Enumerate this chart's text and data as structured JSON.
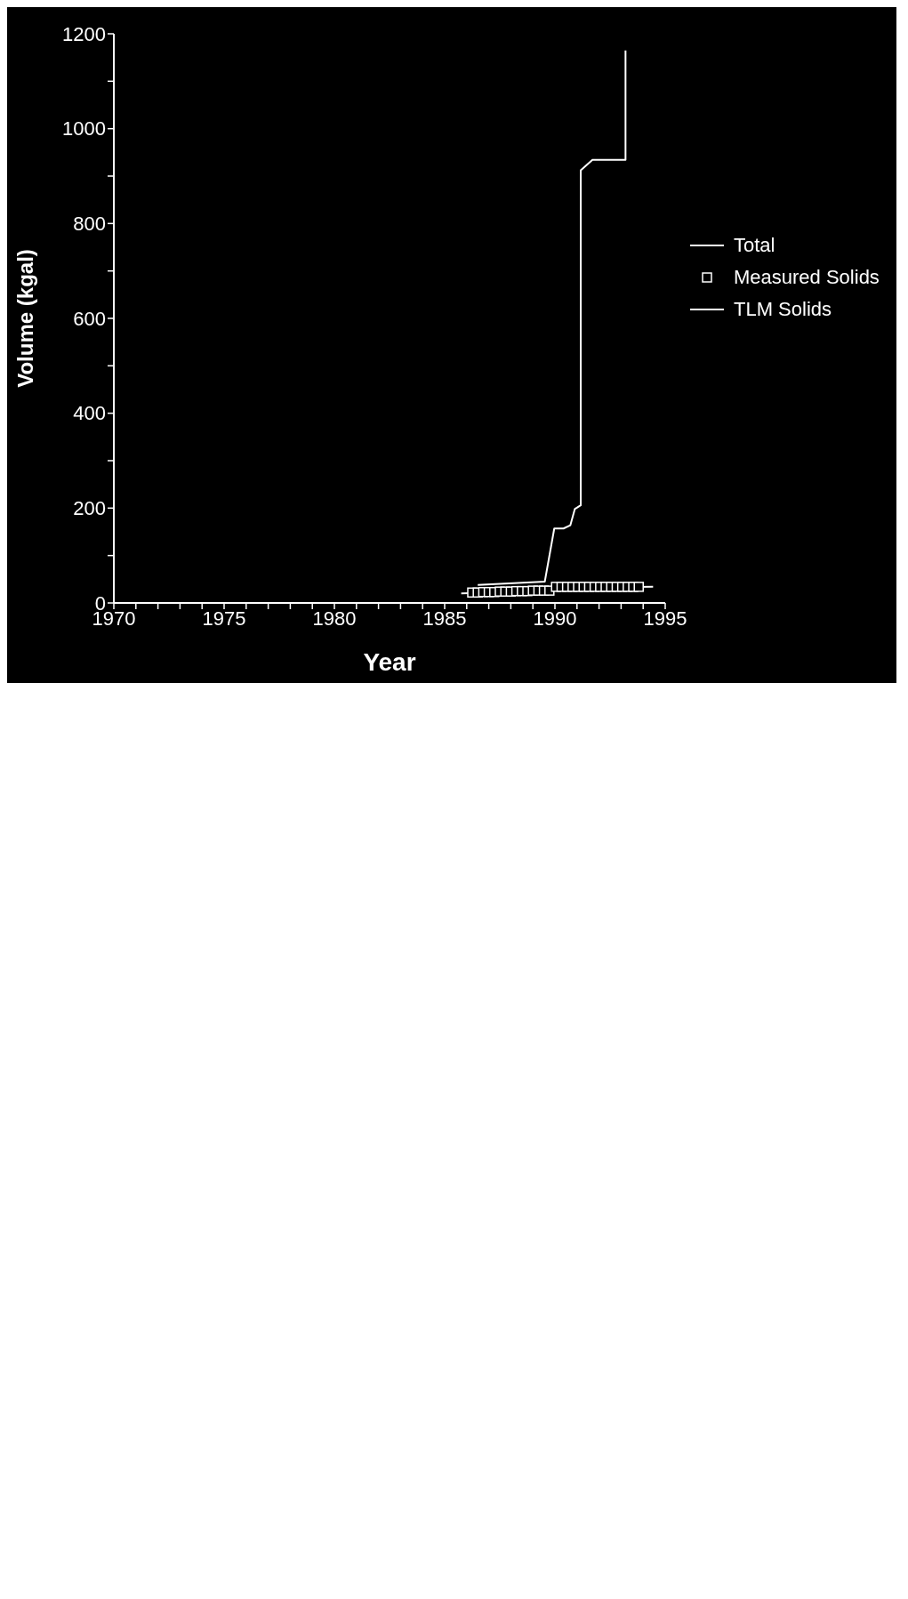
{
  "chart_data": {
    "type": "line",
    "xlabel": "Year",
    "ylabel": "Volume (kgal)",
    "xlim": [
      1970,
      1995
    ],
    "ylim": [
      0,
      1200
    ],
    "xticks": [
      1970,
      {
        "value": 1971,
        "label": null
      },
      {
        "value": 1972,
        "label": null
      },
      {
        "value": 1973,
        "label": null
      },
      {
        "value": 1974,
        "label": null
      },
      1975,
      {
        "value": 1976,
        "label": null
      },
      {
        "value": 1977,
        "label": null
      },
      {
        "value": 1978,
        "label": null
      },
      {
        "value": 1979,
        "label": null
      },
      1980,
      {
        "value": 1981,
        "label": null
      },
      {
        "value": 1982,
        "label": null
      },
      {
        "value": 1983,
        "label": null
      },
      {
        "value": 1984,
        "label": null
      },
      1985,
      {
        "value": 1986,
        "label": null
      },
      {
        "value": 1987,
        "label": null
      },
      {
        "value": 1988,
        "label": null
      },
      {
        "value": 1989,
        "label": null
      },
      1990,
      {
        "value": 1991,
        "label": null
      },
      {
        "value": 1992,
        "label": null
      },
      {
        "value": 1993,
        "label": null
      },
      {
        "value": 1994,
        "label": null
      },
      1995
    ],
    "yticks": [
      0,
      {
        "value": 100,
        "label": null
      },
      200,
      {
        "value": 300,
        "label": null
      },
      400,
      {
        "value": 500,
        "label": null
      },
      600,
      {
        "value": 700,
        "label": null
      },
      800,
      {
        "value": 900,
        "label": null
      },
      1000,
      {
        "value": 1100,
        "label": null
      },
      1200
    ],
    "legend": "right",
    "marker": "none",
    "line_style": "solid",
    "series": [
      {
        "name": "Total",
        "type": "line",
        "color": "#ffffff",
        "x": [
          1986.5,
          1989.54,
          1989.97,
          1990.39,
          1990.7,
          1990.9,
          1991.17,
          1991.17,
          1991.7,
          1993.2,
          1993.2
        ],
        "values": [
          38,
          45,
          157,
          157,
          164,
          198,
          206,
          912,
          934,
          934,
          1165
        ]
      },
      {
        "name": "Measured Solids",
        "type": "scatter",
        "marker": "square",
        "color": "#ffffff",
        "x": [
          1986.25,
          1986.5,
          1986.75,
          1987,
          1987.25,
          1987.5,
          1987.75,
          1988,
          1988.25,
          1988.5,
          1988.75,
          1989,
          1989.25,
          1989.5,
          1989.75,
          1990.05,
          1990.3,
          1990.55,
          1990.8,
          1991.05,
          1991.3,
          1991.55,
          1991.8,
          1992.05,
          1992.3,
          1992.55,
          1992.8,
          1993.05,
          1993.3,
          1993.55,
          1993.8
        ],
        "values": [
          22,
          22,
          23,
          23,
          23,
          24,
          24,
          24,
          25,
          25,
          25,
          26,
          26,
          26,
          26,
          34,
          34,
          34,
          34,
          34,
          34,
          34,
          34,
          34,
          34,
          34,
          34,
          34,
          34,
          34,
          34
        ]
      },
      {
        "name": "TLM Solids",
        "type": "line",
        "color": "#ffffff",
        "x": [
          1985.75,
          1989.8,
          1990.0,
          1994.45
        ],
        "values": [
          20,
          26,
          32,
          34
        ]
      }
    ]
  }
}
